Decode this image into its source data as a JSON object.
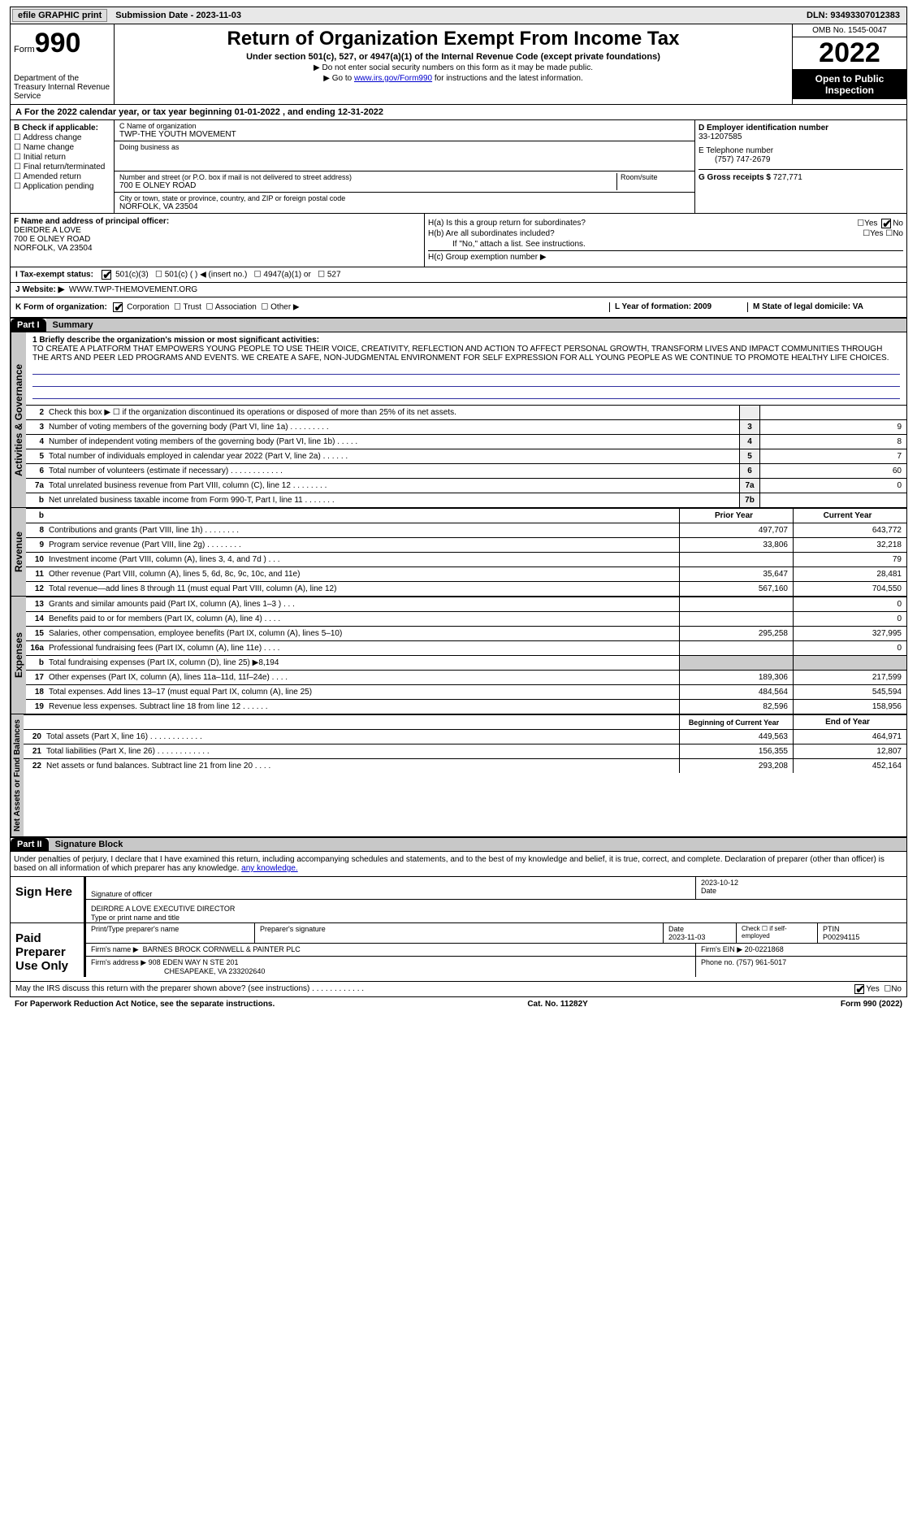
{
  "topbar": {
    "efile": "efile GRAPHIC print",
    "submission": "Submission Date - 2023-11-03",
    "dln": "DLN: 93493307012383"
  },
  "header": {
    "form": "Form",
    "form_num": "990",
    "dept": "Department of the Treasury Internal Revenue Service",
    "title": "Return of Organization Exempt From Income Tax",
    "sub": "Under section 501(c), 527, or 4947(a)(1) of the Internal Revenue Code (except private foundations)",
    "note1": "▶ Do not enter social security numbers on this form as it may be made public.",
    "note2_pre": "▶ Go to ",
    "note2_link": "www.irs.gov/Form990",
    "note2_post": " for instructions and the latest information.",
    "omb": "OMB No. 1545-0047",
    "year": "2022",
    "open": "Open to Public Inspection"
  },
  "line_a": "For the 2022 calendar year, or tax year beginning 01-01-2022    , and ending 12-31-2022",
  "b": {
    "label": "B Check if applicable:",
    "items": [
      "Address change",
      "Name change",
      "Initial return",
      "Final return/terminated",
      "Amended return",
      "Application pending"
    ]
  },
  "c": {
    "name_lbl": "C Name of organization",
    "name": "TWP-THE YOUTH MOVEMENT",
    "dba_lbl": "Doing business as",
    "dba": "",
    "street_lbl": "Number and street (or P.O. box if mail is not delivered to street address)",
    "street": "700 E OLNEY ROAD",
    "room_lbl": "Room/suite",
    "city_lbl": "City or town, state or province, country, and ZIP or foreign postal code",
    "city": "NORFOLK, VA  23504"
  },
  "d": {
    "lbl": "D Employer identification number",
    "val": "33-1207585"
  },
  "e": {
    "lbl": "E Telephone number",
    "val": "(757) 747-2679"
  },
  "g": {
    "lbl": "G Gross receipts $",
    "val": "727,771"
  },
  "f": {
    "lbl": "F  Name and address of principal officer:",
    "name": "DEIRDRE A LOVE",
    "street": "700 E OLNEY ROAD",
    "city": "NORFOLK, VA  23504"
  },
  "h": {
    "ha": "H(a)  Is this a group return for subordinates?",
    "hb": "H(b)  Are all subordinates included?",
    "hb_note": "If \"No,\" attach a list. See instructions.",
    "hc": "H(c)  Group exemption number ▶"
  },
  "i": {
    "lbl": "I    Tax-exempt status:",
    "opts": [
      "501(c)(3)",
      "501(c) (  ) ◀ (insert no.)",
      "4947(a)(1) or",
      "527"
    ]
  },
  "j": {
    "lbl": "J    Website: ▶",
    "val": "WWW.TWP-THEMOVEMENT.ORG"
  },
  "k": {
    "lbl": "K Form of organization:",
    "opts": [
      "Corporation",
      "Trust",
      "Association",
      "Other ▶"
    ]
  },
  "l": {
    "lbl": "L Year of formation: 2009"
  },
  "m": {
    "lbl": "M State of legal domicile: VA"
  },
  "part1": {
    "header": "Part I",
    "title": "Summary"
  },
  "mission": {
    "lbl": "1   Briefly describe the organization's mission or most significant activities:",
    "text": "TO CREATE A PLATFORM THAT EMPOWERS YOUNG PEOPLE TO USE THEIR VOICE, CREATIVITY, REFLECTION AND ACTION TO AFFECT PERSONAL GROWTH, TRANSFORM LIVES AND IMPACT COMMUNITIES THROUGH THE ARTS AND PEER LED PROGRAMS AND EVENTS. WE CREATE A SAFE, NON-JUDGMENTAL ENVIRONMENT FOR SELF EXPRESSION FOR ALL YOUNG PEOPLE AS WE CONTINUE TO PROMOTE HEALTHY LIFE CHOICES."
  },
  "gov_rows": [
    {
      "n": "2",
      "d": "Check this box ▶ ☐  if the organization discontinued its operations or disposed of more than 25% of its net assets.",
      "ln": "",
      "v": ""
    },
    {
      "n": "3",
      "d": "Number of voting members of the governing body (Part VI, line 1a)   .     .     .     .     .     .     .     .     .",
      "ln": "3",
      "v": "9"
    },
    {
      "n": "4",
      "d": "Number of independent voting members of the governing body (Part VI, line 1b)    .     .     .     .     .",
      "ln": "4",
      "v": "8"
    },
    {
      "n": "5",
      "d": "Total number of individuals employed in calendar year 2022 (Part V, line 2a)   .     .     .     .     .     .",
      "ln": "5",
      "v": "7"
    },
    {
      "n": "6",
      "d": "Total number of volunteers (estimate if necessary)   .     .     .     .     .     .     .     .     .     .     .     .",
      "ln": "6",
      "v": "60"
    },
    {
      "n": "7a",
      "d": "Total unrelated business revenue from Part VIII, column (C), line 12    .     .     .     .     .     .     .     .",
      "ln": "7a",
      "v": "0"
    },
    {
      "n": "b",
      "d": "Net unrelated business taxable income from Form 990-T, Part I, line 11    .     .     .     .     .     .     .",
      "ln": "7b",
      "v": ""
    }
  ],
  "col_hdr": {
    "prior": "Prior Year",
    "curr": "Current Year"
  },
  "rev_rows": [
    {
      "n": "8",
      "d": "Contributions and grants (Part VIII, line 1h)   .     .     .     .     .     .     .     .",
      "p": "497,707",
      "c": "643,772"
    },
    {
      "n": "9",
      "d": "Program service revenue (Part VIII, line 2g)   .     .     .     .     .     .     .     .",
      "p": "33,806",
      "c": "32,218"
    },
    {
      "n": "10",
      "d": "Investment income (Part VIII, column (A), lines 3, 4, and 7d )   .     .     .",
      "p": "",
      "c": "79"
    },
    {
      "n": "11",
      "d": "Other revenue (Part VIII, column (A), lines 5, 6d, 8c, 9c, 10c, and 11e)",
      "p": "35,647",
      "c": "28,481"
    },
    {
      "n": "12",
      "d": "Total revenue—add lines 8 through 11 (must equal Part VIII, column (A), line 12)",
      "p": "567,160",
      "c": "704,550"
    }
  ],
  "exp_rows": [
    {
      "n": "13",
      "d": "Grants and similar amounts paid (Part IX, column (A), lines 1–3 )  .     .     .",
      "p": "",
      "c": "0"
    },
    {
      "n": "14",
      "d": "Benefits paid to or for members (Part IX, column (A), line 4)   .     .     .     .",
      "p": "",
      "c": "0"
    },
    {
      "n": "15",
      "d": "Salaries, other compensation, employee benefits (Part IX, column (A), lines 5–10)",
      "p": "295,258",
      "c": "327,995"
    },
    {
      "n": "16a",
      "d": "Professional fundraising fees (Part IX, column (A), line 11e)   .     .     .     .",
      "p": "",
      "c": "0"
    },
    {
      "n": "b",
      "d": "Total fundraising expenses (Part IX, column (D), line 25) ▶8,194",
      "p": "shaded",
      "c": "shaded"
    },
    {
      "n": "17",
      "d": "Other expenses (Part IX, column (A), lines 11a–11d, 11f–24e)   .     .     .     .",
      "p": "189,306",
      "c": "217,599"
    },
    {
      "n": "18",
      "d": "Total expenses. Add lines 13–17 (must equal Part IX, column (A), line 25)",
      "p": "484,564",
      "c": "545,594"
    },
    {
      "n": "19",
      "d": "Revenue less expenses. Subtract line 18 from line 12   .     .     .     .     .     .",
      "p": "82,596",
      "c": "158,956"
    }
  ],
  "bal_hdr": {
    "prior": "Beginning of Current Year",
    "curr": "End of Year"
  },
  "bal_rows": [
    {
      "n": "20",
      "d": "Total assets (Part X, line 16)   .     .     .     .     .     .     .     .     .     .     .     .",
      "p": "449,563",
      "c": "464,971"
    },
    {
      "n": "21",
      "d": "Total liabilities (Part X, line 26)   .     .     .     .     .     .     .     .     .     .     .     .",
      "p": "156,355",
      "c": "12,807"
    },
    {
      "n": "22",
      "d": "Net assets or fund balances. Subtract line 21 from line 20   .     .     .     .",
      "p": "293,208",
      "c": "452,164"
    }
  ],
  "vert": {
    "gov": "Activities & Governance",
    "rev": "Revenue",
    "exp": "Expenses",
    "bal": "Net Assets or Fund Balances"
  },
  "part2": {
    "header": "Part II",
    "title": "Signature Block"
  },
  "sig_decl": "Under penalties of perjury, I declare that I have examined this return, including accompanying schedules and statements, and to the best of my knowledge and belief, it is true, correct, and complete. Declaration of preparer (other than officer) is based on all information of which preparer has any knowledge.",
  "sign": {
    "label": "Sign Here",
    "sig_lbl": "Signature of officer",
    "date": "2023-10-12",
    "date_lbl": "Date",
    "name": "DEIRDRE A LOVE  EXECUTIVE DIRECTOR",
    "name_lbl": "Type or print name and title"
  },
  "paid": {
    "label": "Paid Preparer Use Only",
    "print_lbl": "Print/Type preparer's name",
    "sig_lbl": "Preparer's signature",
    "date_lbl": "Date",
    "date": "2023-11-03",
    "check_lbl": "Check ☐ if self-employed",
    "ptin_lbl": "PTIN",
    "ptin": "P00294115",
    "firm_name_lbl": "Firm's name    ▶",
    "firm_name": "BARNES BROCK CORNWELL & PAINTER PLC",
    "firm_ein_lbl": "Firm's EIN ▶",
    "firm_ein": "20-0221868",
    "firm_addr_lbl": "Firm's address ▶",
    "firm_addr1": "908 EDEN WAY N STE 201",
    "firm_addr2": "CHESAPEAKE, VA  233202640",
    "phone_lbl": "Phone no.",
    "phone": "(757) 961-5017"
  },
  "discuss": "May the IRS discuss this return with the preparer shown above? (see instructions)    .     .     .     .     .     .     .     .     .     .     .     .",
  "footer": {
    "left": "For Paperwork Reduction Act Notice, see the separate instructions.",
    "center": "Cat. No. 11282Y",
    "right": "Form 990 (2022)"
  },
  "colors": {
    "link": "#0000cc",
    "shade": "#c8c8c8",
    "line": "#3030a0"
  }
}
